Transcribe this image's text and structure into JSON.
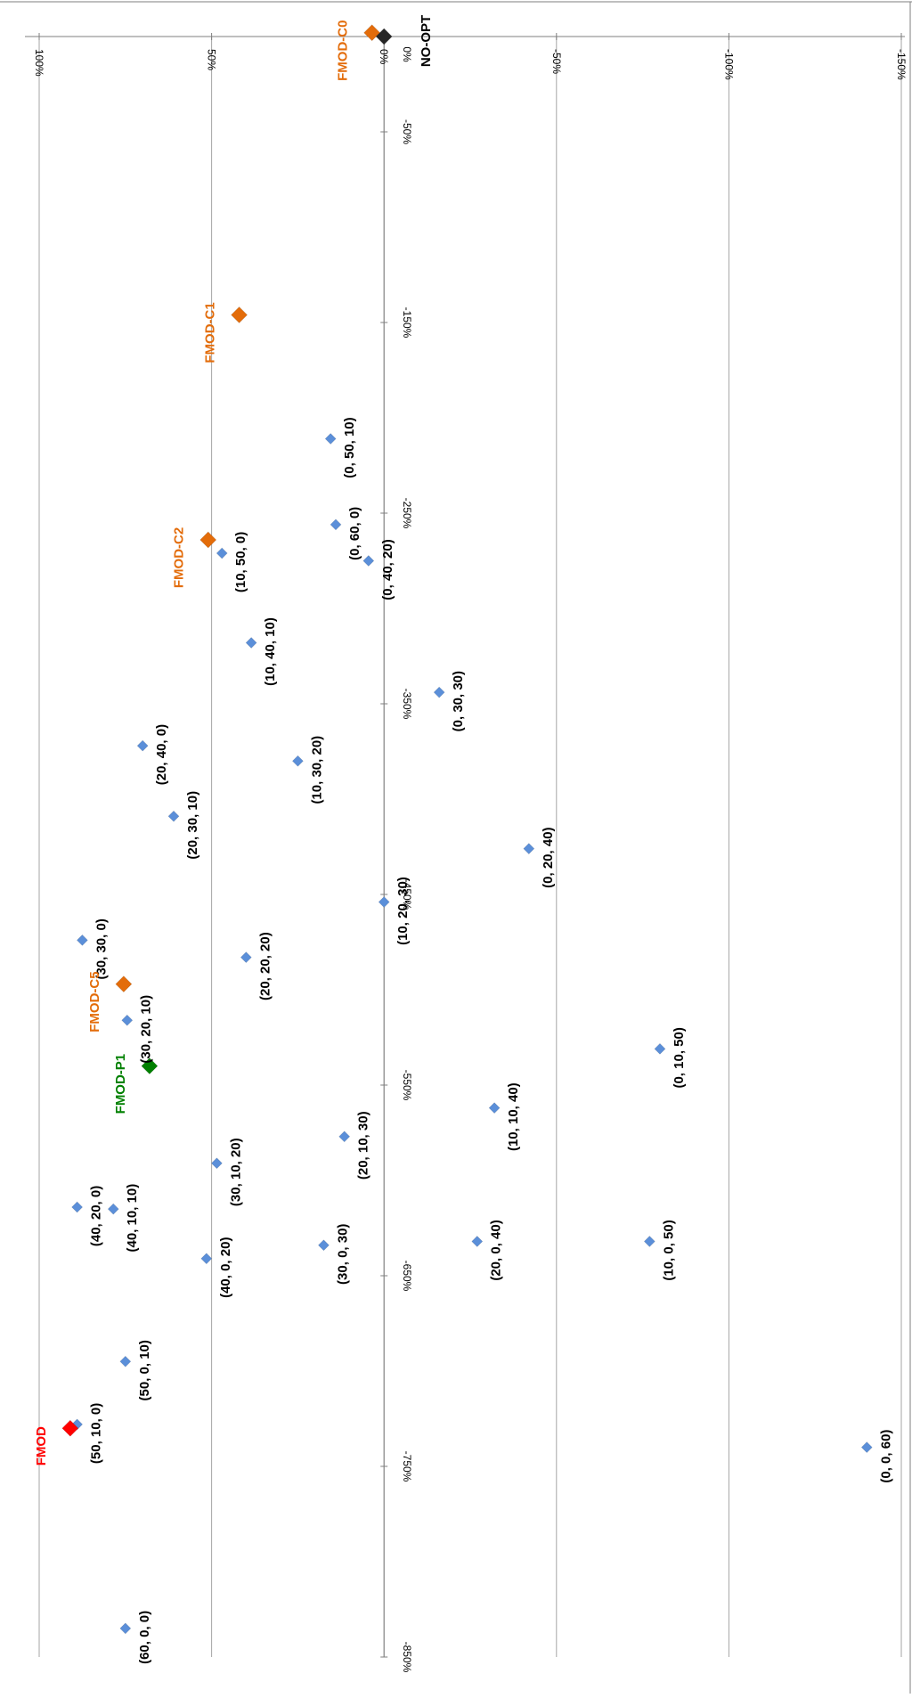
{
  "chart_data": {
    "type": "scatter",
    "title": "",
    "xlabel": "",
    "ylabel": "",
    "orientation": "rotated-90-clockwise",
    "x_axis": {
      "range": [
        -150,
        100
      ],
      "reversed": true,
      "ticks": [
        100,
        50,
        0,
        -50,
        -100,
        -150
      ],
      "tick_labels": [
        "100%",
        "50%",
        "0%",
        "-50%",
        "-100%",
        "-150%"
      ],
      "grid": true
    },
    "y_axis": {
      "range": [
        -850,
        0
      ],
      "ticks": [
        0,
        -50,
        -150,
        -250,
        -350,
        -450,
        -550,
        -650,
        -750,
        -850
      ],
      "tick_labels": [
        "0%",
        "-50%",
        "-150%",
        "-250%",
        "-350%",
        "-450%",
        "-550%",
        "-650%",
        "-750%",
        "-850%"
      ],
      "grid": false
    },
    "legend": "none",
    "colors": {
      "config": "#5b8fd9",
      "fmod_c": "#e36c0a",
      "fmod": "#ff0000",
      "fmod_p": "#008000",
      "no_opt": "#262626"
    },
    "series": [
      {
        "kind": "config",
        "points": [
          {
            "label": "(0, 50, 10)",
            "x": 15.5,
            "y": -211
          },
          {
            "label": "(0, 60, 0)",
            "x": 14,
            "y": -256
          },
          {
            "label": "(0, 40, 20)",
            "x": 4.5,
            "y": -275
          },
          {
            "label": "(10, 50, 0)",
            "x": 47,
            "y": -271
          },
          {
            "label": "(10, 40, 10)",
            "x": 38.5,
            "y": -318
          },
          {
            "label": "(0, 30, 30)",
            "x": -16,
            "y": -344
          },
          {
            "label": "(20, 40, 0)",
            "x": 70,
            "y": -372
          },
          {
            "label": "(10, 30, 20)",
            "x": 25,
            "y": -380
          },
          {
            "label": "(20, 30, 10)",
            "x": 61,
            "y": -409
          },
          {
            "label": "(0, 20, 40)",
            "x": -42,
            "y": -426
          },
          {
            "label": "(10, 20, 30)",
            "x": 0,
            "y": -454
          },
          {
            "label": "(30, 30, 0)",
            "x": 87.5,
            "y": -474
          },
          {
            "label": "(20, 20, 20)",
            "x": 40,
            "y": -483
          },
          {
            "label": "(30, 20, 10)",
            "x": 74.5,
            "y": -516
          },
          {
            "label": "(0, 10, 50)",
            "x": -80,
            "y": -531
          },
          {
            "label": "(10, 10, 40)",
            "x": -32,
            "y": -562
          },
          {
            "label": "(20, 10, 30)",
            "x": 11.5,
            "y": -577
          },
          {
            "label": "(30, 10, 20)",
            "x": 48.5,
            "y": -591
          },
          {
            "label": "(40, 20, 0)",
            "x": 89,
            "y": -614
          },
          {
            "label": "(40, 10, 10)",
            "x": 78.5,
            "y": -615
          },
          {
            "label": "(20, 0, 40)",
            "x": -27,
            "y": -632
          },
          {
            "label": "(10, 0, 50)",
            "x": -77,
            "y": -632
          },
          {
            "label": "(30, 0, 30)",
            "x": 17.5,
            "y": -634
          },
          {
            "label": "(40, 0, 20)",
            "x": 51.5,
            "y": -641
          },
          {
            "label": "(50, 0, 10)",
            "x": 75,
            "y": -695
          },
          {
            "label": "(50, 10, 0)",
            "x": 89,
            "y": -728
          },
          {
            "label": "(0, 0, 60)",
            "x": -140,
            "y": -740
          },
          {
            "label": "(60, 0, 0)",
            "x": 75,
            "y": -835
          }
        ]
      },
      {
        "kind": "named",
        "points": [
          {
            "label": "FMOD-C0",
            "x": 3.5,
            "y": 2,
            "color_key": "fmod_c"
          },
          {
            "label": "NO-OPT",
            "x": 0,
            "y": 0,
            "color_key": "no_opt"
          },
          {
            "label": "FMOD-C1",
            "x": 42,
            "y": -146,
            "color_key": "fmod_c"
          },
          {
            "label": "FMOD-C2",
            "x": 51,
            "y": -264,
            "color_key": "fmod_c"
          },
          {
            "label": "FMOD-C5",
            "x": 75.5,
            "y": -497,
            "color_key": "fmod_c"
          },
          {
            "label": "FMOD-P1",
            "x": 68,
            "y": -540,
            "color_key": "fmod_p"
          },
          {
            "label": "FMOD",
            "x": 91,
            "y": -730,
            "color_key": "fmod"
          }
        ]
      }
    ]
  }
}
